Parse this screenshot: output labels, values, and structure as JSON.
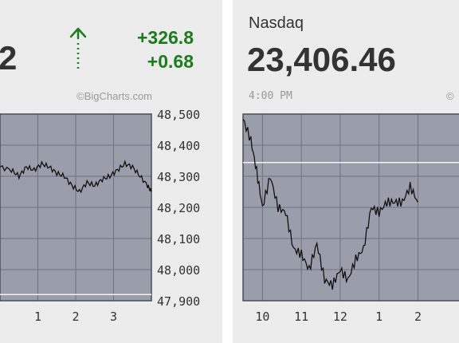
{
  "left_panel": {
    "price_visible": "2",
    "change_points": "+326.8",
    "change_percent": "+0.68",
    "credit": "©BigCharts.com",
    "arrow_color": "#1d7a1d"
  },
  "right_panel": {
    "index_name": "Nasdaq",
    "price": "23,406.46",
    "timestamp": "4:00 PM",
    "credit": "©"
  },
  "chart_data": [
    {
      "type": "line",
      "title": "",
      "x_ticks": [
        "1",
        "2",
        "3"
      ],
      "y_ticks": [
        "48,500",
        "48,400",
        "48,300",
        "48,200",
        "48,100",
        "48,000",
        "47,900"
      ],
      "ylim": [
        47900,
        48500
      ],
      "reference_line": 47920,
      "grid": true,
      "series": [
        {
          "x": [
            0.0,
            0.3,
            0.5,
            0.7,
            0.9,
            1.1,
            1.3,
            1.5,
            1.7,
            1.9,
            2.1,
            2.3,
            2.5,
            2.7,
            2.9,
            3.1,
            3.3,
            3.5,
            3.7,
            3.9,
            4.0
          ],
          "values": [
            48330,
            48320,
            48300,
            48330,
            48320,
            48340,
            48330,
            48310,
            48300,
            48270,
            48250,
            48280,
            48270,
            48290,
            48300,
            48320,
            48340,
            48330,
            48300,
            48270,
            48250
          ]
        }
      ]
    },
    {
      "type": "line",
      "title": "",
      "x_ticks": [
        "10",
        "11",
        "12",
        "1",
        "2"
      ],
      "ylim": [
        23140,
        23500
      ],
      "reference_line": 23406.46,
      "grid": true,
      "series": [
        {
          "x": [
            9.5,
            9.7,
            9.85,
            10.0,
            10.2,
            10.4,
            10.6,
            10.8,
            11.0,
            11.2,
            11.4,
            11.6,
            11.8,
            12.0,
            12.2,
            12.4,
            12.6,
            12.8,
            13.0,
            13.2,
            13.4,
            13.6,
            13.8,
            14.0
          ],
          "values": [
            23490,
            23450,
            23390,
            23320,
            23380,
            23320,
            23310,
            23240,
            23230,
            23200,
            23250,
            23180,
            23170,
            23200,
            23180,
            23220,
            23240,
            23320,
            23310,
            23330,
            23330,
            23330,
            23360,
            23330
          ]
        }
      ]
    }
  ]
}
